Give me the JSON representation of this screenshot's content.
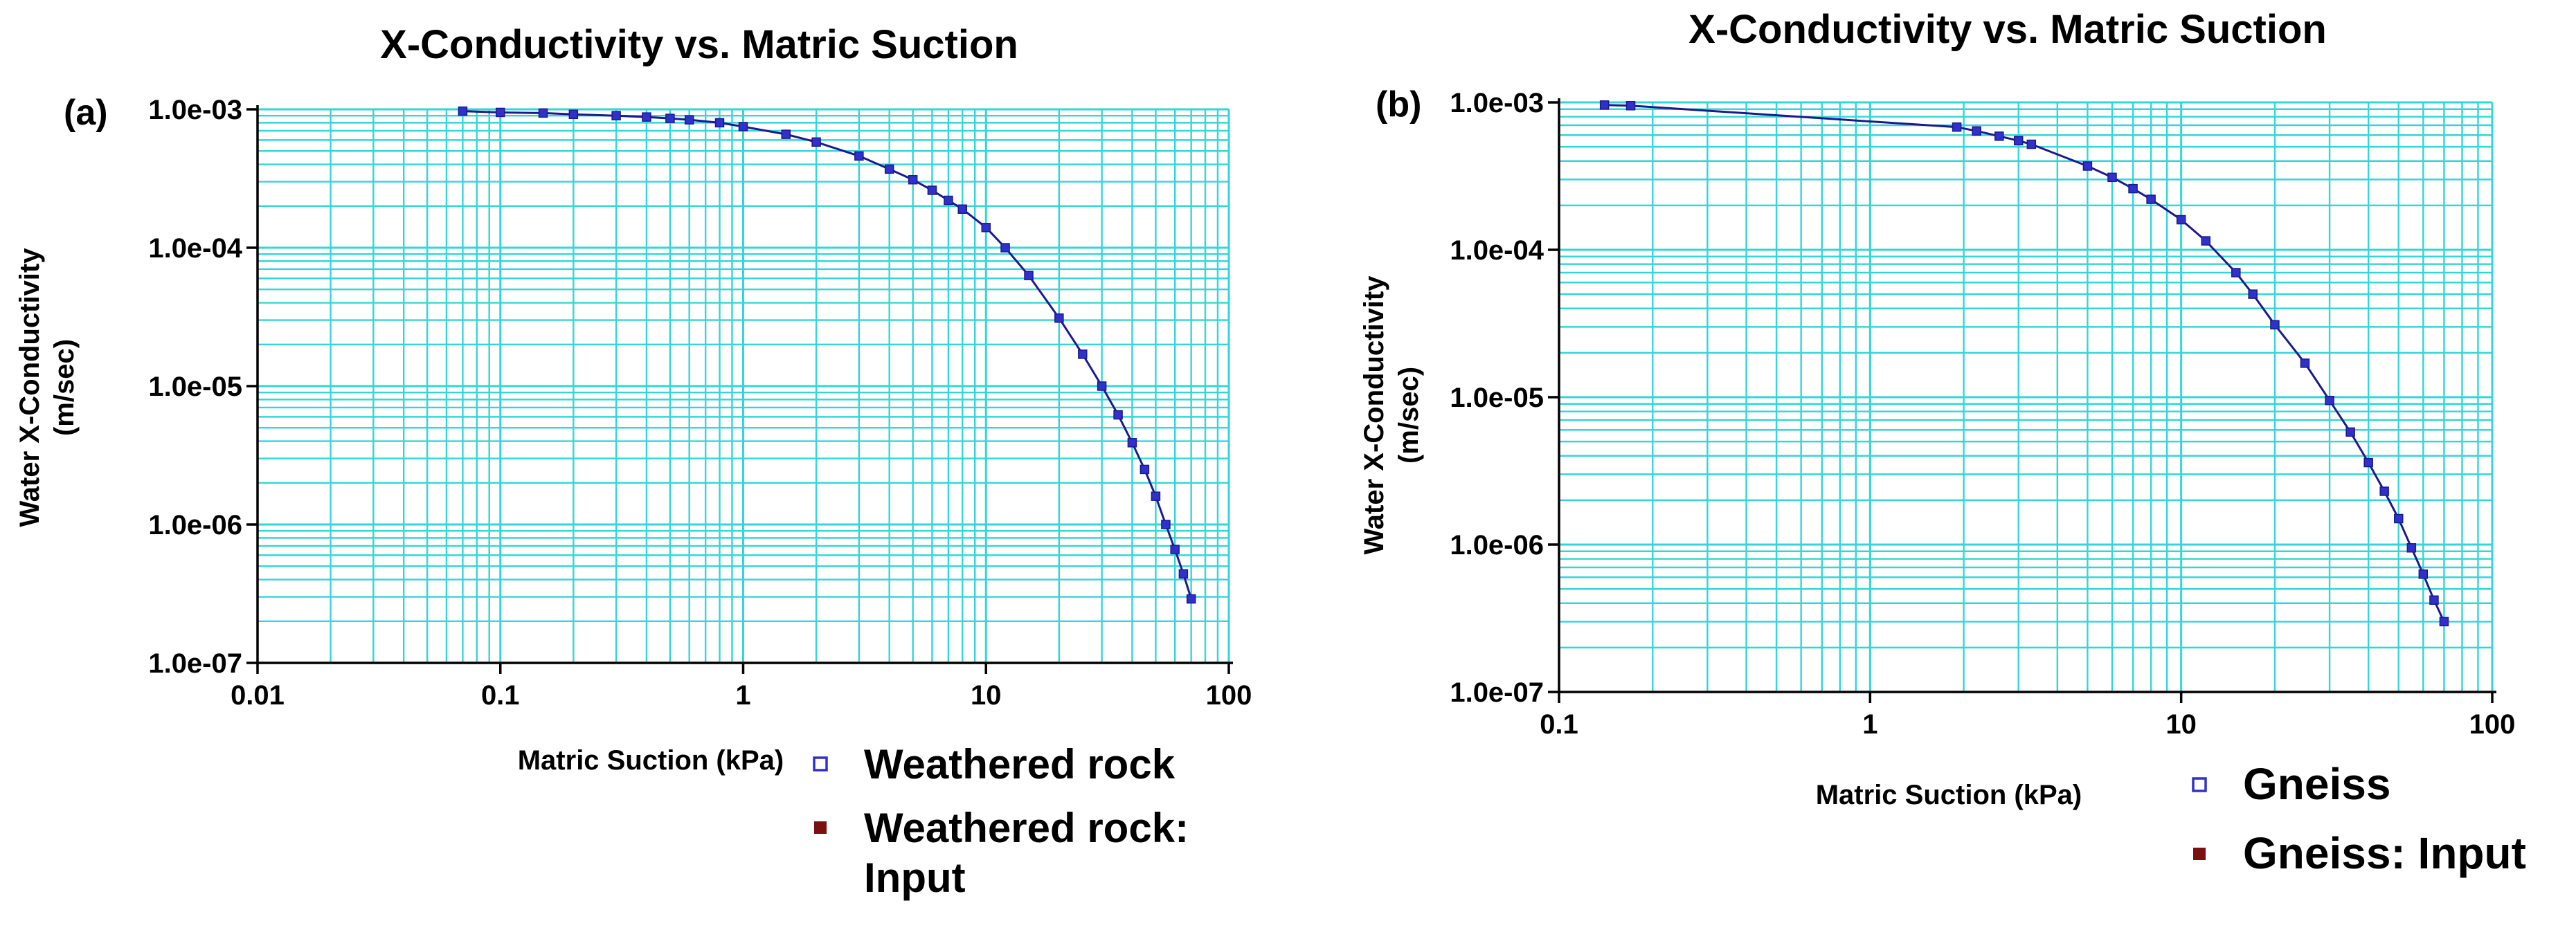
{
  "colors": {
    "grid": "#33d6d6",
    "line": "#1a1a8c",
    "marker": "#3030cc",
    "input_marker": "#7a1010",
    "axis": "#000000"
  },
  "chart_data": [
    {
      "type": "line",
      "panel_label": "(a)",
      "title": "X-Conductivity vs. Matric Suction",
      "xlabel": "Matric Suction (kPa)",
      "ylabel": [
        "Water X-Conductivity",
        "(m/sec)"
      ],
      "xscale": "log",
      "yscale": "log",
      "xlim": [
        0.01,
        100
      ],
      "ylim": [
        1e-07,
        0.001
      ],
      "xticks": [
        0.01,
        0.1,
        1,
        10,
        100
      ],
      "xtick_labels": [
        "0.01",
        "0.1",
        "1",
        "10",
        "100"
      ],
      "yticks": [
        0.001,
        0.0001,
        1e-05,
        1e-06,
        1e-07
      ],
      "ytick_labels": [
        "1.0e-03",
        "1.0e-04",
        "1.0e-05",
        "1.0e-06",
        "1.0e-07"
      ],
      "grid": true,
      "legend_placement": "bottom-right",
      "legend": [
        {
          "symbol": "open-square",
          "lines": [
            "Weathered rock"
          ]
        },
        {
          "symbol": "filled-square",
          "lines": [
            "Weathered rock:",
            "Input"
          ]
        }
      ],
      "series": [
        {
          "name": "Weathered rock",
          "x": [
            0.07,
            0.1,
            0.15,
            0.2,
            0.3,
            0.4,
            0.5,
            0.6,
            0.8,
            1,
            1.5,
            2,
            3,
            4,
            5,
            6,
            7,
            8,
            10,
            12,
            15,
            20,
            25,
            30,
            35,
            40,
            45,
            50,
            55,
            60,
            65,
            70
          ],
          "y": [
            0.00097,
            0.00095,
            0.00094,
            0.00092,
            0.0009,
            0.00088,
            0.00086,
            0.00084,
            0.0008,
            0.00075,
            0.00066,
            0.00058,
            0.00046,
            0.00037,
            0.00031,
            0.00026,
            0.00022,
            0.00019,
            0.00014,
            0.0001,
            6.3e-05,
            3.1e-05,
            1.7e-05,
            1e-05,
            6.2e-06,
            3.9e-06,
            2.5e-06,
            1.6e-06,
            1e-06,
            6.6e-07,
            4.4e-07,
            2.9e-07
          ]
        }
      ]
    },
    {
      "type": "line",
      "panel_label": "(b)",
      "title": "X-Conductivity vs. Matric Suction",
      "xlabel": "Matric Suction (kPa)",
      "ylabel": [
        "Water X-Conductivity",
        "(m/sec)"
      ],
      "xscale": "log",
      "yscale": "log",
      "xlim": [
        0.1,
        100
      ],
      "ylim": [
        1e-07,
        0.001
      ],
      "xticks": [
        0.1,
        1,
        10,
        100
      ],
      "xtick_labels": [
        "0.1",
        "1",
        "10",
        "100"
      ],
      "yticks": [
        0.001,
        0.0001,
        1e-05,
        1e-06,
        1e-07
      ],
      "ytick_labels": [
        "1.0e-03",
        "1.0e-04",
        "1.0e-05",
        "1.0e-06",
        "1.0e-07"
      ],
      "grid": true,
      "legend_placement": "bottom-right",
      "legend": [
        {
          "symbol": "open-square",
          "lines": [
            "Gneiss"
          ]
        },
        {
          "symbol": "filled-square",
          "lines": [
            "Gneiss: Input"
          ]
        }
      ],
      "series": [
        {
          "name": "Gneiss",
          "x": [
            0.14,
            0.17,
            1.9,
            2.2,
            2.6,
            3.0,
            3.3,
            5,
            6,
            7,
            8,
            10,
            12,
            15,
            17,
            20,
            25,
            30,
            35,
            40,
            45,
            50,
            55,
            60,
            65,
            70
          ],
          "y": [
            0.00096,
            0.00095,
            0.00068,
            0.00064,
            0.00059,
            0.00055,
            0.00052,
            0.00037,
            0.00031,
            0.00026,
            0.00022,
            0.00016,
            0.000115,
            7e-05,
            5e-05,
            3.1e-05,
            1.7e-05,
            9.5e-06,
            5.8e-06,
            3.6e-06,
            2.3e-06,
            1.5e-06,
            9.5e-07,
            6.3e-07,
            4.2e-07,
            3e-07
          ]
        }
      ]
    }
  ]
}
